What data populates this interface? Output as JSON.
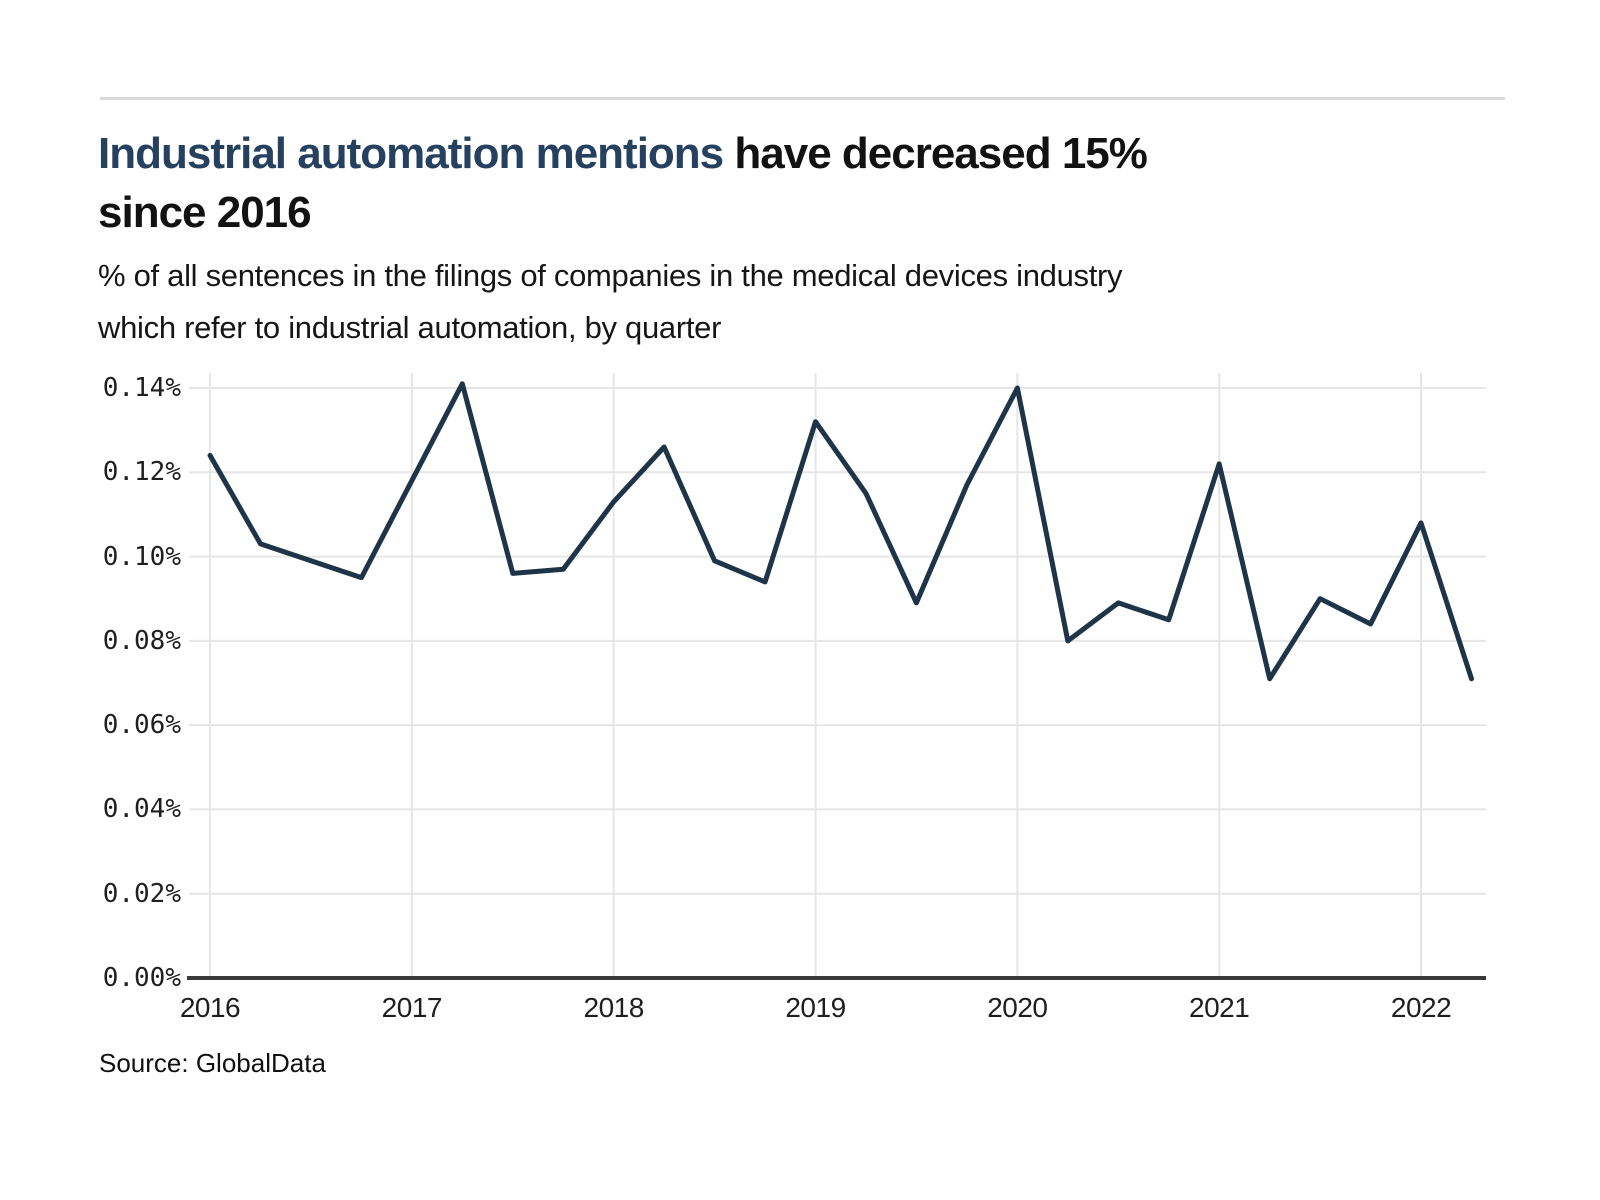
{
  "header": {
    "title_highlight": "Industrial automation mentions",
    "title_rest": " have decreased 15%",
    "title_line2": "since 2016",
    "subtitle_line1": "% of all sentences in the filings of companies in the medical devices industry",
    "subtitle_line2": "which refer to industrial automation, by quarter"
  },
  "footer": {
    "source": "Source: GlobalData"
  },
  "colors": {
    "title_highlight": "#25415f",
    "title_text": "#121212",
    "line": "#1e3449",
    "grid": "#e6e6e6",
    "axis": "#3a3a3a",
    "tick_text": "#1f1f1f",
    "divider": "#d9d9d9"
  },
  "chart_data": {
    "type": "line",
    "title": "Industrial automation mentions have decreased 15% since 2016",
    "subtitle": "% of all sentences in the filings of companies in the medical devices industry which refer to industrial automation, by quarter",
    "xlabel": "",
    "ylabel": "% of all sentences",
    "unit": "%",
    "ylim": [
      0.0,
      0.14
    ],
    "grid": true,
    "legend_position": "none",
    "x": [
      "2016 Q1",
      "2016 Q2",
      "2016 Q3",
      "2016 Q4",
      "2017 Q1",
      "2017 Q2",
      "2017 Q3",
      "2017 Q4",
      "2018 Q1",
      "2018 Q2",
      "2018 Q3",
      "2018 Q4",
      "2019 Q1",
      "2019 Q2",
      "2019 Q3",
      "2019 Q4",
      "2020 Q1",
      "2020 Q2",
      "2020 Q3",
      "2020 Q4",
      "2021 Q1",
      "2021 Q2",
      "2021 Q3",
      "2021 Q4",
      "2022 Q1",
      "2022 Q2"
    ],
    "values": [
      0.124,
      0.103,
      0.099,
      0.095,
      0.118,
      0.141,
      0.096,
      0.097,
      0.113,
      0.126,
      0.099,
      0.094,
      0.132,
      0.115,
      0.089,
      0.117,
      0.14,
      0.08,
      0.089,
      0.085,
      0.122,
      0.071,
      0.09,
      0.084,
      0.108,
      0.071
    ],
    "x_tick_labels": [
      "2016",
      "2017",
      "2018",
      "2019",
      "2020",
      "2021",
      "2022"
    ],
    "y_tick_labels": [
      "0.00%",
      "0.02%",
      "0.04%",
      "0.06%",
      "0.08%",
      "0.10%",
      "0.12%",
      "0.14%"
    ]
  }
}
